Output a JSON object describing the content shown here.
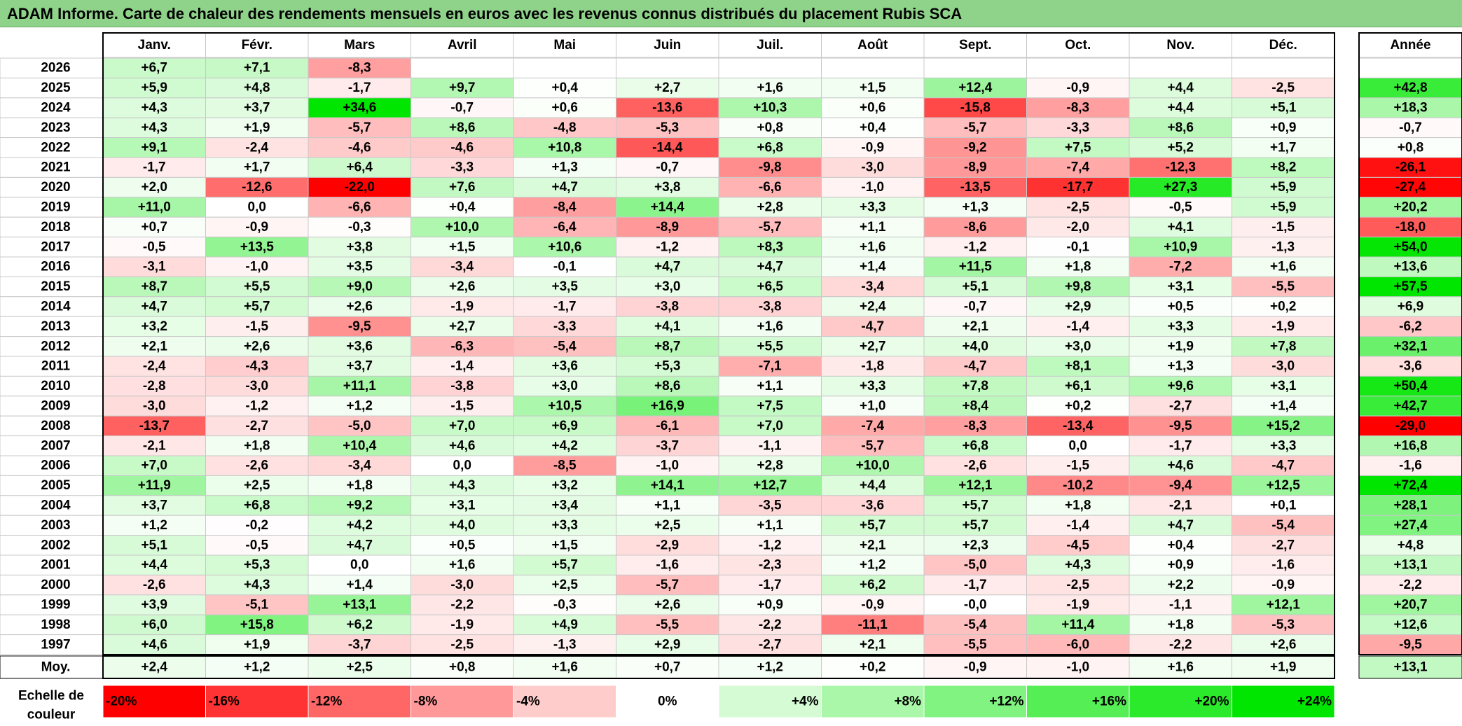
{
  "title": "ADAM Informe. Carte de chaleur des rendements mensuels en euros avec les revenus connus distribués du placement Rubis SCA",
  "chart_data": {
    "type": "heatmap",
    "title": "ADAM Informe. Carte de chaleur des rendements mensuels en euros avec les revenus connus distribués du placement Rubis SCA",
    "columns": [
      "Janv.",
      "Févr.",
      "Mars",
      "Avril",
      "Mai",
      "Juin",
      "Juil.",
      "Août",
      "Sept.",
      "Oct.",
      "Nov.",
      "Déc."
    ],
    "year_column_label": "Année",
    "rows": [
      {
        "year": "2026",
        "months": [
          "+6,7",
          "+7,1",
          "-8,3",
          "",
          "",
          "",
          "",
          "",
          "",
          "",
          "",
          ""
        ],
        "annual": ""
      },
      {
        "year": "2025",
        "months": [
          "+5,9",
          "+4,8",
          "-1,7",
          "+9,7",
          "+0,4",
          "+2,7",
          "+1,6",
          "+1,5",
          "+12,4",
          "-0,9",
          "+4,4",
          "-2,5"
        ],
        "annual": "+42,8"
      },
      {
        "year": "2024",
        "months": [
          "+4,3",
          "+3,7",
          "+34,6",
          "-0,7",
          "+0,6",
          "-13,6",
          "+10,3",
          "+0,6",
          "-15,8",
          "-8,3",
          "+4,4",
          "+5,1"
        ],
        "annual": "+18,3"
      },
      {
        "year": "2023",
        "months": [
          "+4,3",
          "+1,9",
          "-5,7",
          "+8,6",
          "-4,8",
          "-5,3",
          "+0,8",
          "+0,4",
          "-5,7",
          "-3,3",
          "+8,6",
          "+0,9"
        ],
        "annual": "-0,7"
      },
      {
        "year": "2022",
        "months": [
          "+9,1",
          "-2,4",
          "-4,6",
          "-4,6",
          "+10,8",
          "-14,4",
          "+6,8",
          "-0,9",
          "-9,2",
          "+7,5",
          "+5,2",
          "+1,7"
        ],
        "annual": "+0,8"
      },
      {
        "year": "2021",
        "months": [
          "-1,7",
          "+1,7",
          "+6,4",
          "-3,3",
          "+1,3",
          "-0,7",
          "-9,8",
          "-3,0",
          "-8,9",
          "-7,4",
          "-12,3",
          "+8,2"
        ],
        "annual": "-26,1"
      },
      {
        "year": "2020",
        "months": [
          "+2,0",
          "-12,6",
          "-22,0",
          "+7,6",
          "+4,7",
          "+3,8",
          "-6,6",
          "-1,0",
          "-13,5",
          "-17,7",
          "+27,3",
          "+5,9"
        ],
        "annual": "-27,4"
      },
      {
        "year": "2019",
        "months": [
          "+11,0",
          "0,0",
          "-6,6",
          "+0,4",
          "-8,4",
          "+14,4",
          "+2,8",
          "+3,3",
          "+1,3",
          "-2,5",
          "-0,5",
          "+5,9"
        ],
        "annual": "+20,2"
      },
      {
        "year": "2018",
        "months": [
          "+0,7",
          "-0,9",
          "-0,3",
          "+10,0",
          "-6,4",
          "-8,9",
          "-5,7",
          "+1,1",
          "-8,6",
          "-2,0",
          "+4,1",
          "-1,5"
        ],
        "annual": "-18,0"
      },
      {
        "year": "2017",
        "months": [
          "-0,5",
          "+13,5",
          "+3,8",
          "+1,5",
          "+10,6",
          "-1,2",
          "+8,3",
          "+1,6",
          "-1,2",
          "-0,1",
          "+10,9",
          "-1,3"
        ],
        "annual": "+54,0"
      },
      {
        "year": "2016",
        "months": [
          "-3,1",
          "-1,0",
          "+3,5",
          "-3,4",
          "-0,1",
          "+4,7",
          "+4,7",
          "+1,4",
          "+11,5",
          "+1,8",
          "-7,2",
          "+1,6"
        ],
        "annual": "+13,6"
      },
      {
        "year": "2015",
        "months": [
          "+8,7",
          "+5,5",
          "+9,0",
          "+2,6",
          "+3,5",
          "+3,0",
          "+6,5",
          "-3,4",
          "+5,1",
          "+9,8",
          "+3,1",
          "-5,5"
        ],
        "annual": "+57,5"
      },
      {
        "year": "2014",
        "months": [
          "+4,7",
          "+5,7",
          "+2,6",
          "-1,9",
          "-1,7",
          "-3,8",
          "-3,8",
          "+2,4",
          "-0,7",
          "+2,9",
          "+0,5",
          "+0,2"
        ],
        "annual": "+6,9"
      },
      {
        "year": "2013",
        "months": [
          "+3,2",
          "-1,5",
          "-9,5",
          "+2,7",
          "-3,3",
          "+4,1",
          "+1,6",
          "-4,7",
          "+2,1",
          "-1,4",
          "+3,3",
          "-1,9"
        ],
        "annual": "-6,2"
      },
      {
        "year": "2012",
        "months": [
          "+2,1",
          "+2,6",
          "+3,6",
          "-6,3",
          "-5,4",
          "+8,7",
          "+5,5",
          "+2,7",
          "+4,0",
          "+3,0",
          "+1,9",
          "+7,8"
        ],
        "annual": "+32,1"
      },
      {
        "year": "2011",
        "months": [
          "-2,4",
          "-4,3",
          "+3,7",
          "-1,4",
          "+3,6",
          "+5,3",
          "-7,1",
          "-1,8",
          "-4,7",
          "+8,1",
          "+1,3",
          "-3,0"
        ],
        "annual": "-3,6"
      },
      {
        "year": "2010",
        "months": [
          "-2,8",
          "-3,0",
          "+11,1",
          "-3,8",
          "+3,0",
          "+8,6",
          "+1,1",
          "+3,3",
          "+7,8",
          "+6,1",
          "+9,6",
          "+3,1"
        ],
        "annual": "+50,4"
      },
      {
        "year": "2009",
        "months": [
          "-3,0",
          "-1,2",
          "+1,2",
          "-1,5",
          "+10,5",
          "+16,9",
          "+7,5",
          "+1,0",
          "+8,4",
          "+0,2",
          "-2,7",
          "+1,4"
        ],
        "annual": "+42,7"
      },
      {
        "year": "2008",
        "months": [
          "-13,7",
          "-2,7",
          "-5,0",
          "+7,0",
          "+6,9",
          "-6,1",
          "+7,0",
          "-7,4",
          "-8,3",
          "-13,4",
          "-9,5",
          "+15,2"
        ],
        "annual": "-29,0"
      },
      {
        "year": "2007",
        "months": [
          "-2,1",
          "+1,8",
          "+10,4",
          "+4,6",
          "+4,2",
          "-3,7",
          "-1,1",
          "-5,7",
          "+6,8",
          "0,0",
          "-1,7",
          "+3,3"
        ],
        "annual": "+16,8"
      },
      {
        "year": "2006",
        "months": [
          "+7,0",
          "-2,6",
          "-3,4",
          "0,0",
          "-8,5",
          "-1,0",
          "+2,8",
          "+10,0",
          "-2,6",
          "-1,5",
          "+4,6",
          "-4,7"
        ],
        "annual": "-1,6"
      },
      {
        "year": "2005",
        "months": [
          "+11,9",
          "+2,5",
          "+1,8",
          "+4,3",
          "+3,2",
          "+14,1",
          "+12,7",
          "+4,4",
          "+12,1",
          "-10,2",
          "-9,4",
          "+12,5"
        ],
        "annual": "+72,4"
      },
      {
        "year": "2004",
        "months": [
          "+3,7",
          "+6,8",
          "+9,2",
          "+3,1",
          "+3,4",
          "+1,1",
          "-3,5",
          "-3,6",
          "+5,7",
          "+1,8",
          "-2,1",
          "+0,1"
        ],
        "annual": "+28,1"
      },
      {
        "year": "2003",
        "months": [
          "+1,2",
          "-0,2",
          "+4,2",
          "+4,0",
          "+3,3",
          "+2,5",
          "+1,1",
          "+5,7",
          "+5,7",
          "-1,4",
          "+4,7",
          "-5,4"
        ],
        "annual": "+27,4"
      },
      {
        "year": "2002",
        "months": [
          "+5,1",
          "-0,5",
          "+4,7",
          "+0,5",
          "+1,5",
          "-2,9",
          "-1,2",
          "+2,1",
          "+2,3",
          "-4,5",
          "+0,4",
          "-2,7"
        ],
        "annual": "+4,8"
      },
      {
        "year": "2001",
        "months": [
          "+4,4",
          "+5,3",
          "0,0",
          "+1,6",
          "+5,7",
          "-1,6",
          "-2,3",
          "+1,2",
          "-5,0",
          "+4,3",
          "+0,9",
          "-1,6"
        ],
        "annual": "+13,1"
      },
      {
        "year": "2000",
        "months": [
          "-2,6",
          "+4,3",
          "+1,4",
          "-3,0",
          "+2,5",
          "-5,7",
          "-1,7",
          "+6,2",
          "-1,7",
          "-2,5",
          "+2,2",
          "-0,9"
        ],
        "annual": "-2,2"
      },
      {
        "year": "1999",
        "months": [
          "+3,9",
          "-5,1",
          "+13,1",
          "-2,2",
          "-0,3",
          "+2,6",
          "+0,9",
          "-0,9",
          "-0,0",
          "-1,9",
          "-1,1",
          "+12,1"
        ],
        "annual": "+20,7"
      },
      {
        "year": "1998",
        "months": [
          "+6,0",
          "+15,8",
          "+6,2",
          "-1,9",
          "+4,9",
          "-5,5",
          "-2,2",
          "-11,1",
          "-5,4",
          "+11,4",
          "+1,8",
          "-5,3"
        ],
        "annual": "+12,6"
      },
      {
        "year": "1997",
        "months": [
          "+4,6",
          "+1,9",
          "-3,7",
          "-2,5",
          "-1,3",
          "+2,9",
          "-2,7",
          "+2,1",
          "-5,5",
          "-6,0",
          "-2,2",
          "+2,6"
        ],
        "annual": "-9,5"
      }
    ],
    "average": {
      "label": "Moy.",
      "months": [
        "+2,4",
        "+1,2",
        "+2,5",
        "+0,8",
        "+1,6",
        "+0,7",
        "+1,2",
        "+0,2",
        "-0,9",
        "-1,0",
        "+1,6",
        "+1,9"
      ],
      "annual": "+13,1"
    },
    "color_scale": {
      "label_line1": "Echelle de",
      "label_line2": "couleur",
      "stops": [
        "-20%",
        "-16%",
        "-12%",
        "-8%",
        "-4%",
        "0%",
        "+4%",
        "+8%",
        "+12%",
        "+16%",
        "+20%",
        "+24%"
      ],
      "values": [
        -20,
        -16,
        -12,
        -8,
        -4,
        0,
        4,
        8,
        12,
        16,
        20,
        24
      ],
      "negative_color": "#ff0000",
      "neutral_color": "#ffffff",
      "positive_color": "#00e600"
    }
  }
}
